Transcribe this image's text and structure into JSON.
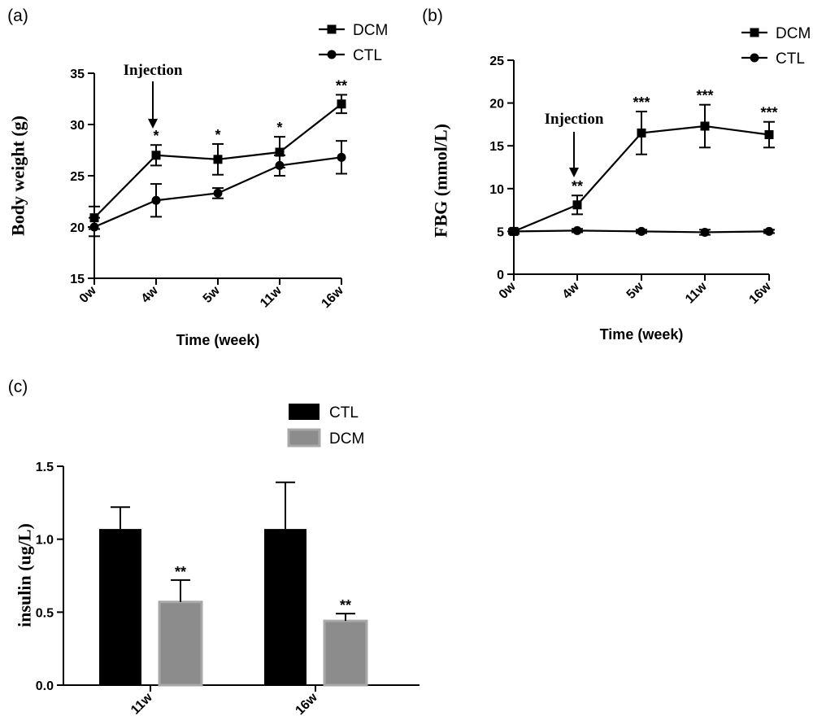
{
  "chart_data": [
    {
      "panel_label": "(a)",
      "type": "line",
      "ylabel": "Body weight (g)",
      "xlabel": "Time (week)",
      "categories": [
        "0w",
        "4w",
        "5w",
        "11w",
        "16w"
      ],
      "ylim": [
        15,
        35
      ],
      "yticks": [
        15,
        20,
        25,
        30,
        35
      ],
      "annotation": "Injection",
      "annotation_category": "4w",
      "legend_position": "top-right",
      "series": [
        {
          "name": "DCM",
          "marker": "square",
          "values": [
            20.9,
            27.0,
            26.6,
            27.3,
            32.0
          ],
          "errors": [
            1.1,
            1.0,
            1.5,
            1.5,
            0.9
          ],
          "significance": [
            "",
            "*",
            "*",
            "*",
            "**"
          ]
        },
        {
          "name": "CTL",
          "marker": "circle",
          "values": [
            20.0,
            22.6,
            23.3,
            26.0,
            26.8
          ],
          "errors": [
            0.9,
            1.6,
            0.5,
            1.0,
            1.6
          ],
          "significance": [
            "",
            "",
            "",
            "",
            ""
          ]
        }
      ]
    },
    {
      "panel_label": "(b)",
      "type": "line",
      "ylabel": "FBG (mmol/L)",
      "xlabel": "Time (week)",
      "categories": [
        "0w",
        "4w",
        "5w",
        "11w",
        "16w"
      ],
      "ylim": [
        0,
        25
      ],
      "yticks": [
        0,
        5,
        10,
        15,
        20,
        25
      ],
      "annotation": "Injection",
      "annotation_category": "4w",
      "legend_position": "top-right",
      "series": [
        {
          "name": "DCM",
          "marker": "square",
          "values": [
            5.0,
            8.1,
            16.5,
            17.3,
            16.3
          ],
          "errors": [
            0.3,
            1.1,
            2.5,
            2.5,
            1.5
          ],
          "significance": [
            "",
            "**",
            "***",
            "***",
            "***"
          ]
        },
        {
          "name": "CTL",
          "marker": "circle",
          "values": [
            5.0,
            5.1,
            5.0,
            4.9,
            5.0
          ],
          "errors": [
            0.2,
            0.2,
            0.2,
            0.3,
            0.2
          ],
          "significance": [
            "",
            "",
            "",
            "",
            ""
          ]
        }
      ]
    },
    {
      "panel_label": "(c)",
      "type": "bar",
      "ylabel": "insulin (ug/L)",
      "xlabel": "",
      "categories": [
        "11w",
        "16w"
      ],
      "ylim": [
        0.0,
        1.5
      ],
      "yticks": [
        "0.0",
        "0.5",
        "1.0",
        "1.5"
      ],
      "legend_position": "top-center",
      "series": [
        {
          "name": "CTL",
          "color": "#000000",
          "values": [
            1.07,
            1.07
          ],
          "errors": [
            0.15,
            0.32
          ],
          "significance": [
            "",
            ""
          ]
        },
        {
          "name": "DCM",
          "color": "#8c8c8c",
          "values": [
            0.57,
            0.44
          ],
          "errors": [
            0.15,
            0.05
          ],
          "significance": [
            "**",
            "**"
          ]
        }
      ]
    }
  ]
}
